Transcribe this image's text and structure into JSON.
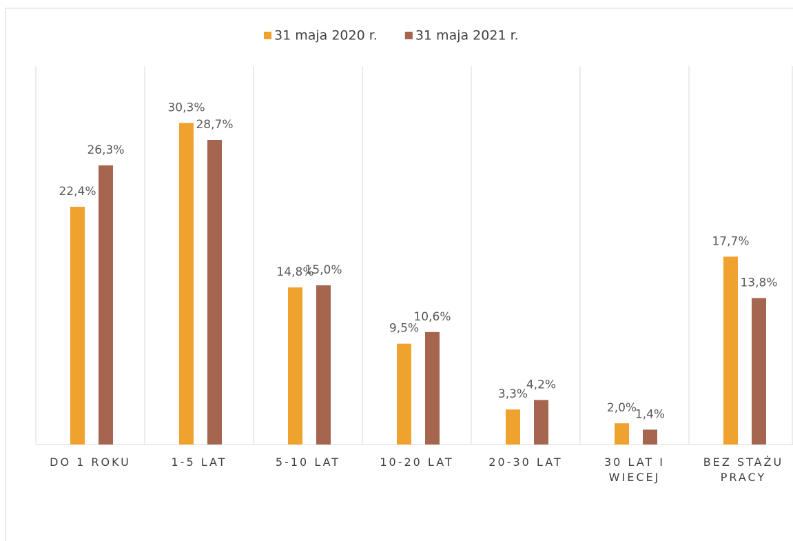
{
  "chart_data": {
    "type": "bar",
    "categories": [
      "DO 1 ROKU",
      "1-5 LAT",
      "5-10 LAT",
      "10-20 LAT",
      "20-30 LAT",
      "30 LAT I WIECEJ",
      "BEZ STAŻU PRACY"
    ],
    "series": [
      {
        "name": "31 maja 2020 r.",
        "color": "#f0a22e",
        "values": [
          22.4,
          30.3,
          14.8,
          9.5,
          3.3,
          2.0,
          17.7
        ],
        "value_labels": [
          "22,4%",
          "30,3%",
          "14,8%",
          "9,5%",
          "3,3%",
          "2,0%",
          "17,7%"
        ]
      },
      {
        "name": "31 maja 2021 r.",
        "color": "#a5654e",
        "values": [
          26.3,
          28.7,
          15.0,
          10.6,
          4.2,
          1.4,
          13.8
        ],
        "value_labels": [
          "26,3%",
          "28,7%",
          "15,0%",
          "10,6%",
          "4,2%",
          "1,4%",
          "13,8%"
        ]
      }
    ],
    "ylim": [
      0,
      35
    ],
    "legend": "top"
  }
}
